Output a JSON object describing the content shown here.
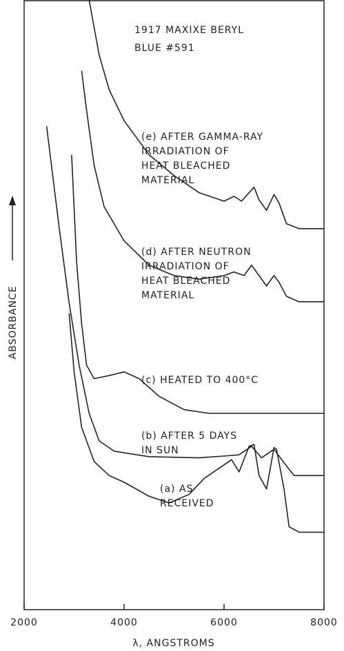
{
  "chart_data": {
    "type": "line",
    "title": [
      "1917 MAXIXE BERYL",
      "BLUE #591"
    ],
    "xlabel": "λ, ANGSTROMS",
    "ylabel": "ABSORBANCE",
    "xlim": [
      2000,
      8000
    ],
    "xticks": [
      2000,
      4000,
      6000,
      8000
    ],
    "ylim": [
      0,
      100
    ],
    "color": "#222222",
    "series": [
      {
        "name": [
          "(e) AFTER GAMMA-RAY",
          "IRRADIATION OF",
          "HEAT BLEACHED",
          "MATERIAL"
        ],
        "x": [
          3300,
          3500,
          3700,
          4000,
          4500,
          5000,
          5500,
          6000,
          6200,
          6350,
          6500,
          6600,
          6700,
          6850,
          7000,
          7100,
          7250,
          7500,
          8000
        ],
        "values": [
          100,
          91,
          85.3,
          80.2,
          74.6,
          71.2,
          68.4,
          67,
          67.8,
          67,
          68.4,
          69.3,
          67.2,
          65.5,
          68.1,
          66.7,
          63.3,
          62.5,
          62.5
        ]
      },
      {
        "name": [
          "(d) AFTER NEUTRON",
          "IRRADIATION OF",
          "HEAT BLEACHED",
          "MATERIAL"
        ],
        "x": [
          3150,
          3250,
          3400,
          3600,
          4000,
          4500,
          5000,
          5500,
          6000,
          6200,
          6400,
          6550,
          6700,
          6850,
          7000,
          7100,
          7250,
          7500,
          8000
        ],
        "values": [
          88.4,
          81.9,
          72.9,
          66.1,
          60.5,
          56.5,
          54.8,
          54.2,
          54.8,
          55.4,
          54.8,
          56.5,
          54.8,
          53.1,
          54.8,
          53.7,
          51.4,
          50.5,
          50.5
        ]
      },
      {
        "name": [
          "(c) HEATED TO 400°C"
        ],
        "x": [
          2950,
          3050,
          3150,
          3250,
          3400,
          3700,
          4000,
          4300,
          4700,
          5200,
          5700,
          8000
        ],
        "values": [
          74.6,
          57.1,
          46.9,
          40.1,
          37.9,
          38.4,
          39.0,
          37.9,
          35.0,
          32.8,
          32.2,
          32.2
        ]
      },
      {
        "name": [
          "(b) AFTER 5 DAYS",
          "IN SUN"
        ],
        "x": [
          2450,
          2700,
          2900,
          3100,
          3300,
          3500,
          3800,
          4500,
          5500,
          6000,
          6300,
          6550,
          6750,
          7000,
          7200,
          7400,
          8000
        ],
        "values": [
          79.3,
          62.7,
          50.3,
          40.1,
          32.2,
          27.7,
          26.0,
          25.1,
          24.9,
          25.2,
          25.4,
          26.8,
          24.9,
          26.3,
          24.1,
          22.0,
          22.0
        ]
      },
      {
        "name": [
          "(a) AS",
          "RECEIVED"
        ],
        "x": [
          2900,
          3000,
          3150,
          3400,
          3700,
          4000,
          4500,
          4900,
          5300,
          5600,
          5900,
          6150,
          6300,
          6500,
          6600,
          6700,
          6850,
          7000,
          7050,
          7200,
          7300,
          7500,
          8000
        ],
        "values": [
          48.6,
          39.0,
          29.9,
          24.3,
          22.0,
          20.9,
          18.6,
          17.5,
          18.9,
          21.5,
          23.2,
          24.6,
          22.6,
          26.8,
          27.1,
          22.0,
          19.8,
          26.6,
          26.3,
          19.8,
          13.6,
          12.7,
          12.7
        ]
      }
    ]
  }
}
